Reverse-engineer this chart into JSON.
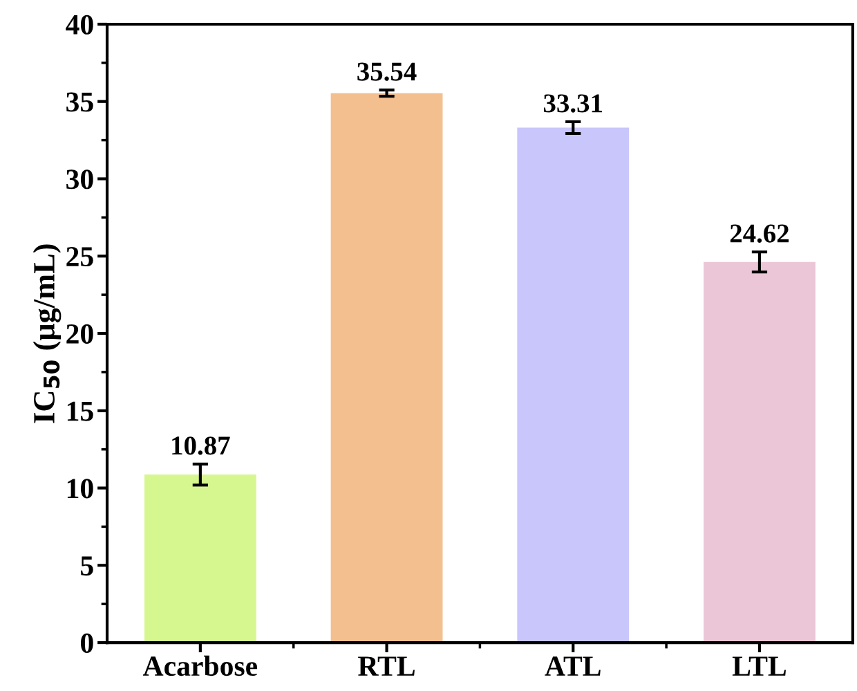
{
  "chart_data": {
    "type": "bar",
    "ylabel": "IC$_{50}$ (μg/mL)",
    "categories": [
      "Acarbose",
      "RTL",
      "ATL",
      "LTL"
    ],
    "values": [
      10.87,
      35.54,
      33.31,
      24.62
    ],
    "errors": [
      0.68,
      0.2,
      0.38,
      0.65
    ],
    "colors": [
      "#d6f78f",
      "#f4bf8e",
      "#c8c6fb",
      "#ebc6d6"
    ],
    "ylim": [
      0,
      40
    ],
    "yticks": [
      0,
      5,
      10,
      15,
      20,
      25,
      30,
      35,
      40
    ],
    "data_labels": true,
    "grid": false,
    "legend": false
  }
}
